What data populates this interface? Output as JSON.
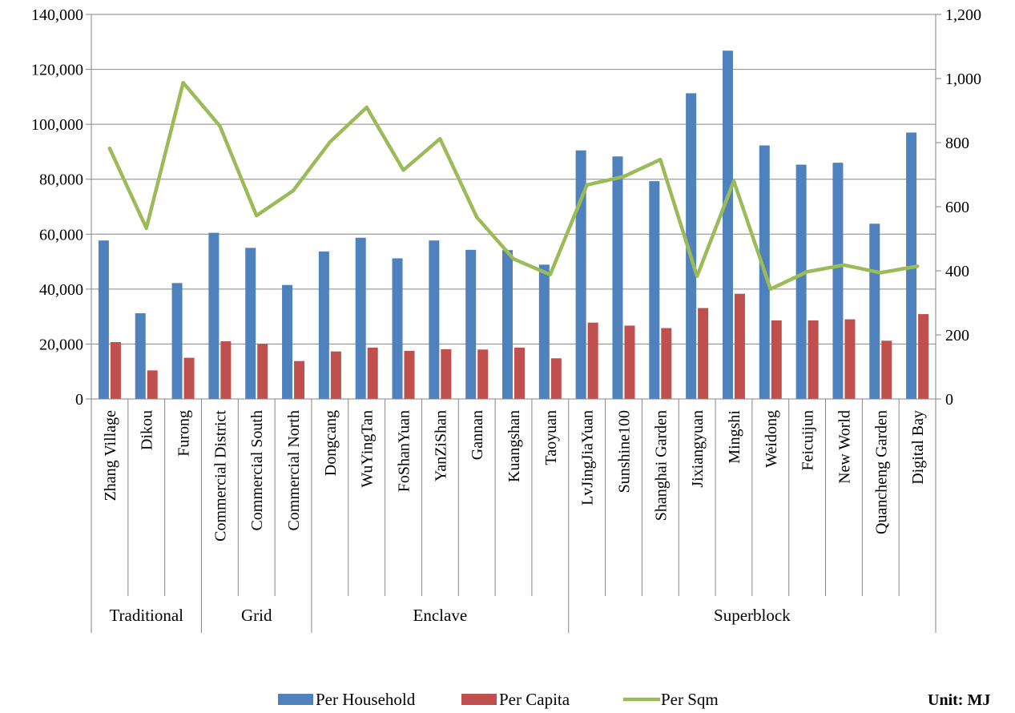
{
  "chart_data": {
    "type": "bar",
    "categories": [
      "Zhang Village",
      "Dikou",
      "Furong",
      "Commercial District",
      "Commercial South",
      "Commercial North",
      "Dongcang",
      "WuYingTan",
      "FoShanYuan",
      "YanZiShan",
      "Gannan",
      "Kuangshan",
      "Taoyuan",
      "LvJingJiaYuan",
      "Sunshine100",
      "Shanghai Garden",
      "Jixiangyuan",
      "Mingshi",
      "Weidong",
      "Feicuijun",
      "New World",
      "Quancheng Garden",
      "Digital Bay"
    ],
    "groups": [
      {
        "label": "Traditional",
        "count": 3
      },
      {
        "label": "Grid",
        "count": 3
      },
      {
        "label": "Enclave",
        "count": 7
      },
      {
        "label": "Superblock",
        "count": 10
      }
    ],
    "series": [
      {
        "name": "Per Household",
        "type": "bar",
        "axis": "left",
        "color": "#4F81BD",
        "values": [
          57700,
          31200,
          42200,
          60500,
          55000,
          41500,
          53700,
          58700,
          51200,
          57700,
          54300,
          54200,
          48900,
          90500,
          88300,
          79300,
          111300,
          126800,
          92300,
          85300,
          86000,
          63800,
          97000
        ]
      },
      {
        "name": "Per Capita",
        "type": "bar",
        "axis": "left",
        "color": "#C0504D",
        "values": [
          20700,
          10400,
          15000,
          21000,
          20000,
          13800,
          17300,
          18700,
          17500,
          18100,
          18000,
          18700,
          14800,
          27800,
          26700,
          25800,
          33100,
          38300,
          28600,
          28600,
          29000,
          21200,
          30900
        ]
      },
      {
        "name": "Per Sqm",
        "type": "line",
        "axis": "right",
        "color": "#9BBB59",
        "values": [
          782,
          533,
          987,
          852,
          572,
          650,
          802,
          910,
          714,
          812,
          567,
          437,
          388,
          668,
          694,
          747,
          383,
          680,
          343,
          397,
          418,
          394,
          414
        ]
      }
    ],
    "y_left": {
      "min": 0,
      "max": 140000,
      "step": 20000,
      "ticks": [
        "0",
        "20,000",
        "40,000",
        "60,000",
        "80,000",
        "100,000",
        "120,000",
        "140,000"
      ]
    },
    "y_right": {
      "min": 0,
      "max": 1200,
      "step": 200,
      "ticks": [
        "0",
        "200",
        "400",
        "600",
        "800",
        "1,000",
        "1,200"
      ]
    },
    "grid": true,
    "legend": "bottom",
    "unit_note": "Unit: MJ"
  }
}
